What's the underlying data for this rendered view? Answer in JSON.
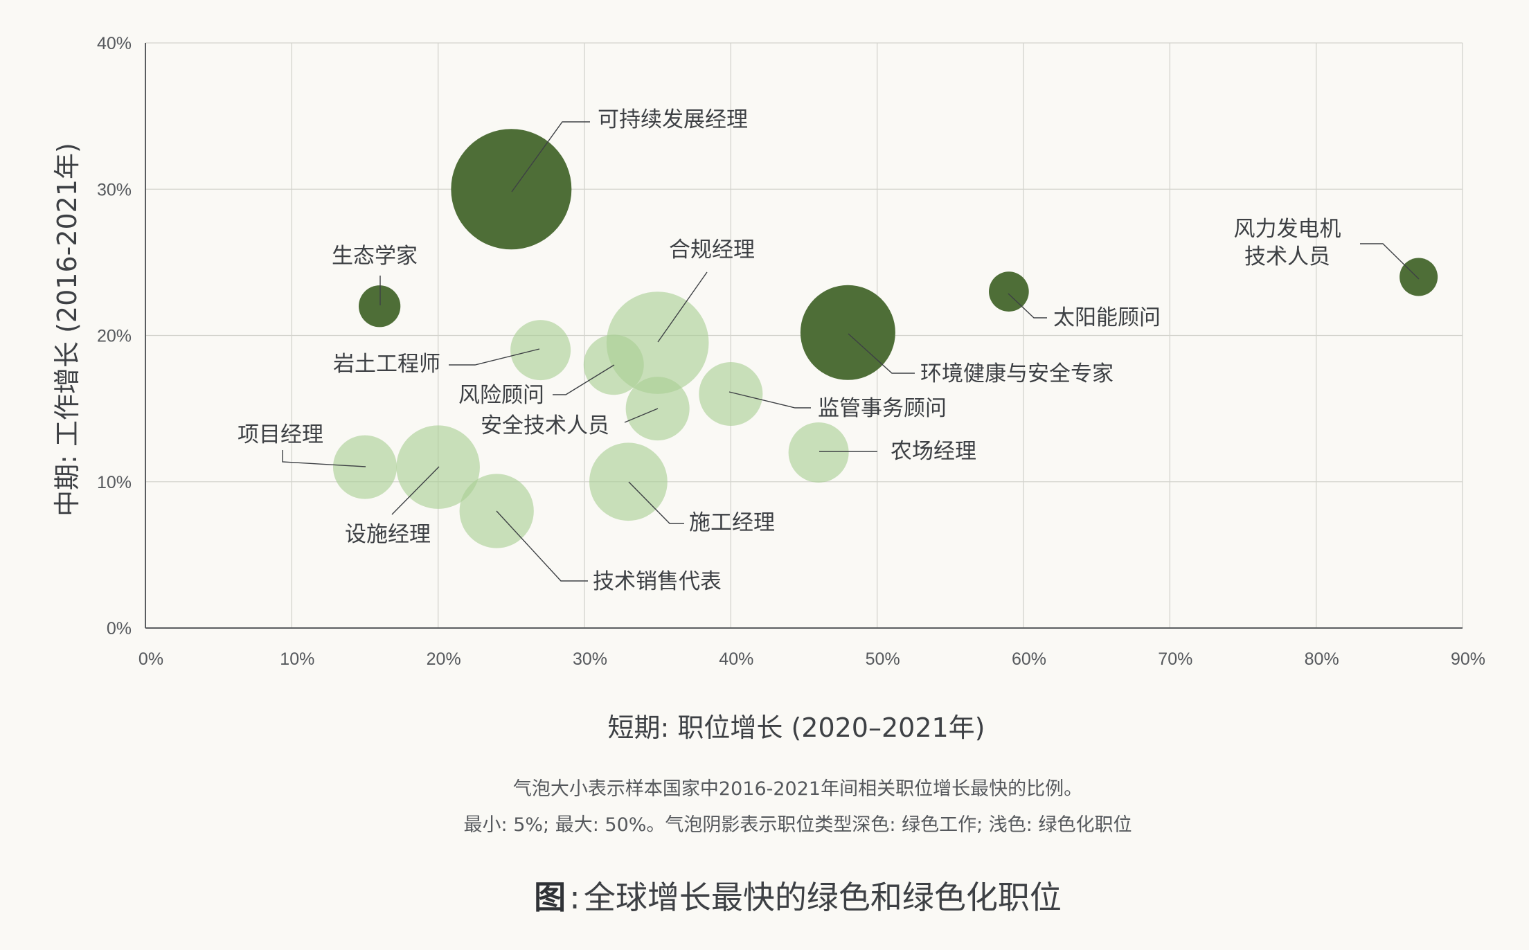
{
  "chart_data": {
    "type": "bubble",
    "title": "全球增长最快的绿色和绿色化职位",
    "caption_prefix": "图",
    "caption_sep": ":",
    "xlabel": "短期: 职位增长 (2020–2021年)",
    "ylabel": "中期: 工作增长 (2016-2021年)",
    "xlim": [
      0,
      90
    ],
    "ylim": [
      0,
      40
    ],
    "x_ticks": [
      "0%",
      "10%",
      "20%",
      "30%",
      "40%",
      "50%",
      "60%",
      "70%",
      "80%",
      "90%"
    ],
    "y_ticks": [
      "0%",
      "10%",
      "20%",
      "30%",
      "40%"
    ],
    "grid": true,
    "colors": {
      "green_job": "#4e6e37",
      "greening_job": "#a9cf94"
    },
    "notes": [
      "气泡大小表示样本国家中2016-2021年间相关职位增长最快的比例。",
      "最小: 5%; 最大: 50%。气泡阴影表示职位类型深色: 绿色工作; 浅色: 绿色化职位"
    ],
    "series": [
      {
        "name": "可持续发展经理",
        "x": 25,
        "y": 30,
        "size": 50,
        "type": "green"
      },
      {
        "name": "生态学家",
        "x": 16,
        "y": 22,
        "size": 6,
        "type": "green"
      },
      {
        "name": "岩土工程师",
        "x": 27,
        "y": 19,
        "size": 12.5,
        "type": "greening"
      },
      {
        "name": "风险顾问",
        "x": 32,
        "y": 18,
        "size": 12.5,
        "type": "greening"
      },
      {
        "name": "合规经理",
        "x": 35,
        "y": 19.5,
        "size": 36,
        "type": "greening"
      },
      {
        "name": "安全技术人员",
        "x": 35,
        "y": 15,
        "size": 14,
        "type": "greening"
      },
      {
        "name": "监管事务顾问",
        "x": 40,
        "y": 16,
        "size": 14,
        "type": "greening"
      },
      {
        "name": "农场经理",
        "x": 46,
        "y": 12,
        "size": 12.5,
        "type": "greening"
      },
      {
        "name": "环境健康与安全专家",
        "x": 48,
        "y": 20.2,
        "size": 31,
        "type": "green"
      },
      {
        "name": "太阳能顾问",
        "x": 59,
        "y": 23,
        "size": 5.5,
        "type": "green"
      },
      {
        "name": "风力发电机技术人员",
        "label_lines": [
          "风力发电机",
          "技术人员"
        ],
        "x": 87,
        "y": 24,
        "size": 5,
        "type": "green"
      },
      {
        "name": "项目经理",
        "x": 15,
        "y": 11,
        "size": 14,
        "type": "greening"
      },
      {
        "name": "设施经理",
        "x": 20,
        "y": 11,
        "size": 24,
        "type": "greening"
      },
      {
        "name": "技术销售代表",
        "x": 24,
        "y": 8,
        "size": 19,
        "type": "greening"
      },
      {
        "name": "施工经理",
        "x": 33,
        "y": 10,
        "size": 21,
        "type": "greening"
      }
    ]
  }
}
